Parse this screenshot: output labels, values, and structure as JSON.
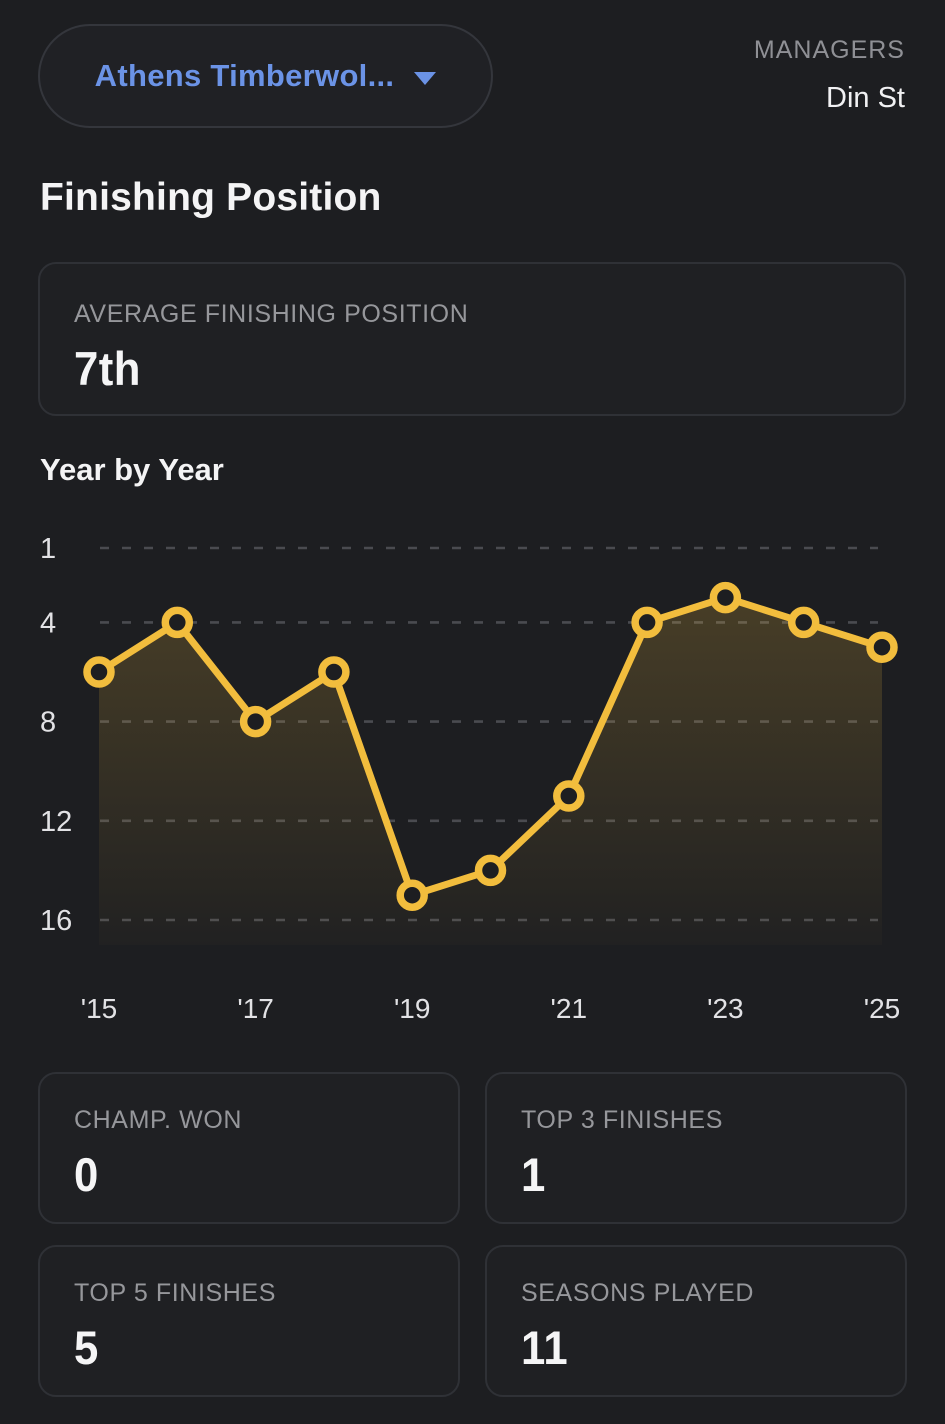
{
  "header": {
    "team_selector": {
      "label": "Athens Timberwol...",
      "icon": "chevron-down"
    },
    "managers_label": "MANAGERS",
    "managers_value": "Din St"
  },
  "page_title": "Finishing Position",
  "summary_card": {
    "label": "AVERAGE FINISHING POSITION",
    "value": "7th"
  },
  "section_title": "Year by Year",
  "chart_data": {
    "type": "line",
    "title": "Year by Year",
    "x": [
      2015,
      2016,
      2017,
      2018,
      2019,
      2020,
      2021,
      2022,
      2023,
      2024,
      2025
    ],
    "values": [
      6,
      4,
      8,
      6,
      15,
      14,
      11,
      4,
      3,
      4,
      5
    ],
    "y_ticks": [
      1,
      4,
      8,
      12,
      16
    ],
    "y_axis_inverted": true,
    "ylim": [
      1,
      17
    ],
    "x_tick_labels": [
      "'15",
      "'17",
      "'19",
      "'21",
      "'23",
      "'25"
    ],
    "x_tick_indices": [
      0,
      2,
      4,
      6,
      8,
      10
    ],
    "grid": "horizontal-dashed",
    "legend": "none",
    "style": {
      "line_color": "#f2bd3d",
      "point_fill": "#1d1e21",
      "grid_color": "#4a4b50",
      "area_fill_top": "rgba(242,189,61,0.20)",
      "area_fill_bottom": "rgba(242,189,61,0.02)",
      "tick_label_color": "#e2e2e5"
    }
  },
  "stats": [
    {
      "label": "CHAMP. WON",
      "value": "0"
    },
    {
      "label": "TOP 3 FINISHES",
      "value": "1"
    },
    {
      "label": "TOP 5 FINISHES",
      "value": "5"
    },
    {
      "label": "SEASONS PLAYED",
      "value": "11"
    }
  ],
  "colors": {
    "background": "#1d1e21",
    "card_border": "#2f3136",
    "accent_blue": "#6b93e6",
    "accent_gold": "#f2bd3d",
    "label_gray": "#96979b",
    "text_white": "#f4f4f5"
  }
}
